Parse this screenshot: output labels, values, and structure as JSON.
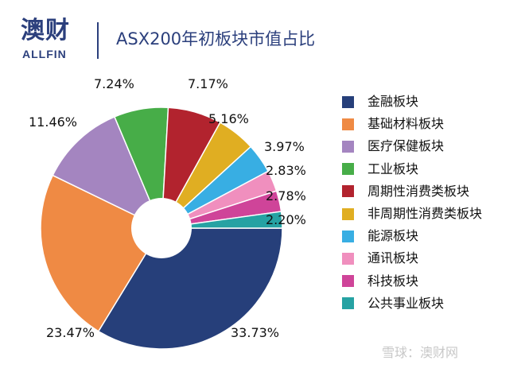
{
  "header": {
    "logo_cn": "澳财",
    "logo_en": "ALLFIN",
    "title": "ASX200年初板块市值占比"
  },
  "watermark": "雪球：澳财网",
  "chart_data": {
    "type": "pie",
    "title": "ASX200年初板块市值占比",
    "donut_hole": true,
    "start": "east, clockwise",
    "legend_position": "right",
    "categories": [
      "金融板块",
      "基础材料板块",
      "医疗保健板块",
      "工业板块",
      "周期性消费类板块",
      "非周期性消费类板块",
      "能源板块",
      "通讯板块",
      "科技板块",
      "公共事业板块"
    ],
    "values": [
      33.73,
      23.47,
      11.46,
      7.24,
      7.17,
      5.16,
      3.97,
      2.83,
      2.78,
      2.2
    ],
    "labels": [
      "33.73%",
      "23.47%",
      "11.46%",
      "7.24%",
      "7.17%",
      "5.16%",
      "3.97%",
      "2.83%",
      "2.78%",
      "2.20%"
    ],
    "colors": [
      "#263f7a",
      "#ef8a44",
      "#a485c0",
      "#47ad48",
      "#b2232e",
      "#e0ae22",
      "#38aee3",
      "#f08fbe",
      "#cf4499",
      "#26a2a3"
    ]
  }
}
